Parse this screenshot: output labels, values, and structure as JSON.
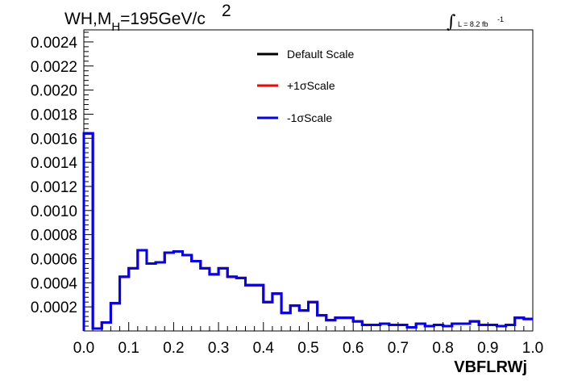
{
  "chart_data": {
    "type": "histogram",
    "title": {
      "main": "WH,M",
      "sub": "H",
      "rest": "=195GeV/c",
      "sup": "2"
    },
    "luminosity": {
      "integral": "∫",
      "text": "L = 8.2 fb",
      "sup": "-1"
    },
    "xlabel": "VBFLRWj",
    "ylabel": "",
    "xlim": [
      0.0,
      1.0
    ],
    "ylim": [
      0.0,
      0.0025
    ],
    "x_ticks": [
      "0.0",
      "0.1",
      "0.2",
      "0.3",
      "0.4",
      "0.5",
      "0.6",
      "0.7",
      "0.8",
      "0.9",
      "1.0"
    ],
    "y_ticks": [
      "0.0002",
      "0.0004",
      "0.0006",
      "0.0008",
      "0.0010",
      "0.0012",
      "0.0014",
      "0.0016",
      "0.0018",
      "0.0020",
      "0.0022",
      "0.0024"
    ],
    "bin_edges": [
      0.0,
      0.02,
      0.04,
      0.06,
      0.08,
      0.1,
      0.12,
      0.14,
      0.16,
      0.18,
      0.2,
      0.22,
      0.24,
      0.26,
      0.28,
      0.3,
      0.32,
      0.34,
      0.36,
      0.38,
      0.4,
      0.42,
      0.44,
      0.46,
      0.48,
      0.5,
      0.52,
      0.54,
      0.56,
      0.58,
      0.6,
      0.62,
      0.64,
      0.66,
      0.68,
      0.7,
      0.72,
      0.74,
      0.76,
      0.78,
      0.8,
      0.82,
      0.84,
      0.86,
      0.88,
      0.9,
      0.92,
      0.94,
      0.96,
      0.98,
      1.0
    ],
    "series": [
      {
        "name": "Default Scale",
        "color": "#000000",
        "values": [
          0.00164,
          2e-05,
          7e-05,
          0.00023,
          0.00045,
          0.00052,
          0.00067,
          0.00056,
          0.00057,
          0.00065,
          0.00066,
          0.00063,
          0.00058,
          0.00052,
          0.00047,
          0.00052,
          0.00045,
          0.00044,
          0.00038,
          0.00038,
          0.00024,
          0.00031,
          0.00015,
          0.00021,
          0.00017,
          0.00024,
          0.00013,
          9e-05,
          0.00011,
          0.00011,
          8e-05,
          5e-05,
          5e-05,
          6e-05,
          5e-05,
          5e-05,
          3e-05,
          6e-05,
          4e-05,
          5e-05,
          4e-05,
          6e-05,
          6e-05,
          8e-05,
          5e-05,
          5e-05,
          4e-05,
          5e-05,
          0.00011,
          0.0001
        ]
      },
      {
        "name": "+1σScale",
        "color": "#ff0000",
        "values": [
          0.00164,
          2e-05,
          7e-05,
          0.00023,
          0.00045,
          0.00052,
          0.00067,
          0.00056,
          0.00057,
          0.00065,
          0.00066,
          0.00063,
          0.00058,
          0.00052,
          0.00047,
          0.00052,
          0.00045,
          0.00044,
          0.00038,
          0.00038,
          0.00024,
          0.00031,
          0.00015,
          0.00021,
          0.00017,
          0.00024,
          0.00013,
          9e-05,
          0.00011,
          0.00011,
          8e-05,
          5e-05,
          5e-05,
          6e-05,
          5e-05,
          5e-05,
          3e-05,
          6e-05,
          4e-05,
          5e-05,
          4e-05,
          6e-05,
          6e-05,
          8e-05,
          5e-05,
          5e-05,
          4e-05,
          5e-05,
          0.00011,
          0.0001
        ]
      },
      {
        "name": "-1σScale",
        "color": "#0000ff",
        "values": [
          0.00164,
          2e-05,
          7e-05,
          0.00023,
          0.00045,
          0.00052,
          0.00067,
          0.00056,
          0.00057,
          0.00065,
          0.00066,
          0.00063,
          0.00058,
          0.00052,
          0.00047,
          0.00052,
          0.00045,
          0.00044,
          0.00038,
          0.00038,
          0.00024,
          0.00031,
          0.00015,
          0.00021,
          0.00017,
          0.00024,
          0.00013,
          9e-05,
          0.00011,
          0.00011,
          8e-05,
          5e-05,
          5e-05,
          6e-05,
          5e-05,
          5e-05,
          3e-05,
          6e-05,
          4e-05,
          5e-05,
          4e-05,
          6e-05,
          6e-05,
          8e-05,
          5e-05,
          5e-05,
          4e-05,
          5e-05,
          0.00011,
          0.0001
        ]
      }
    ],
    "legend_position": "top-center",
    "grid": false
  }
}
